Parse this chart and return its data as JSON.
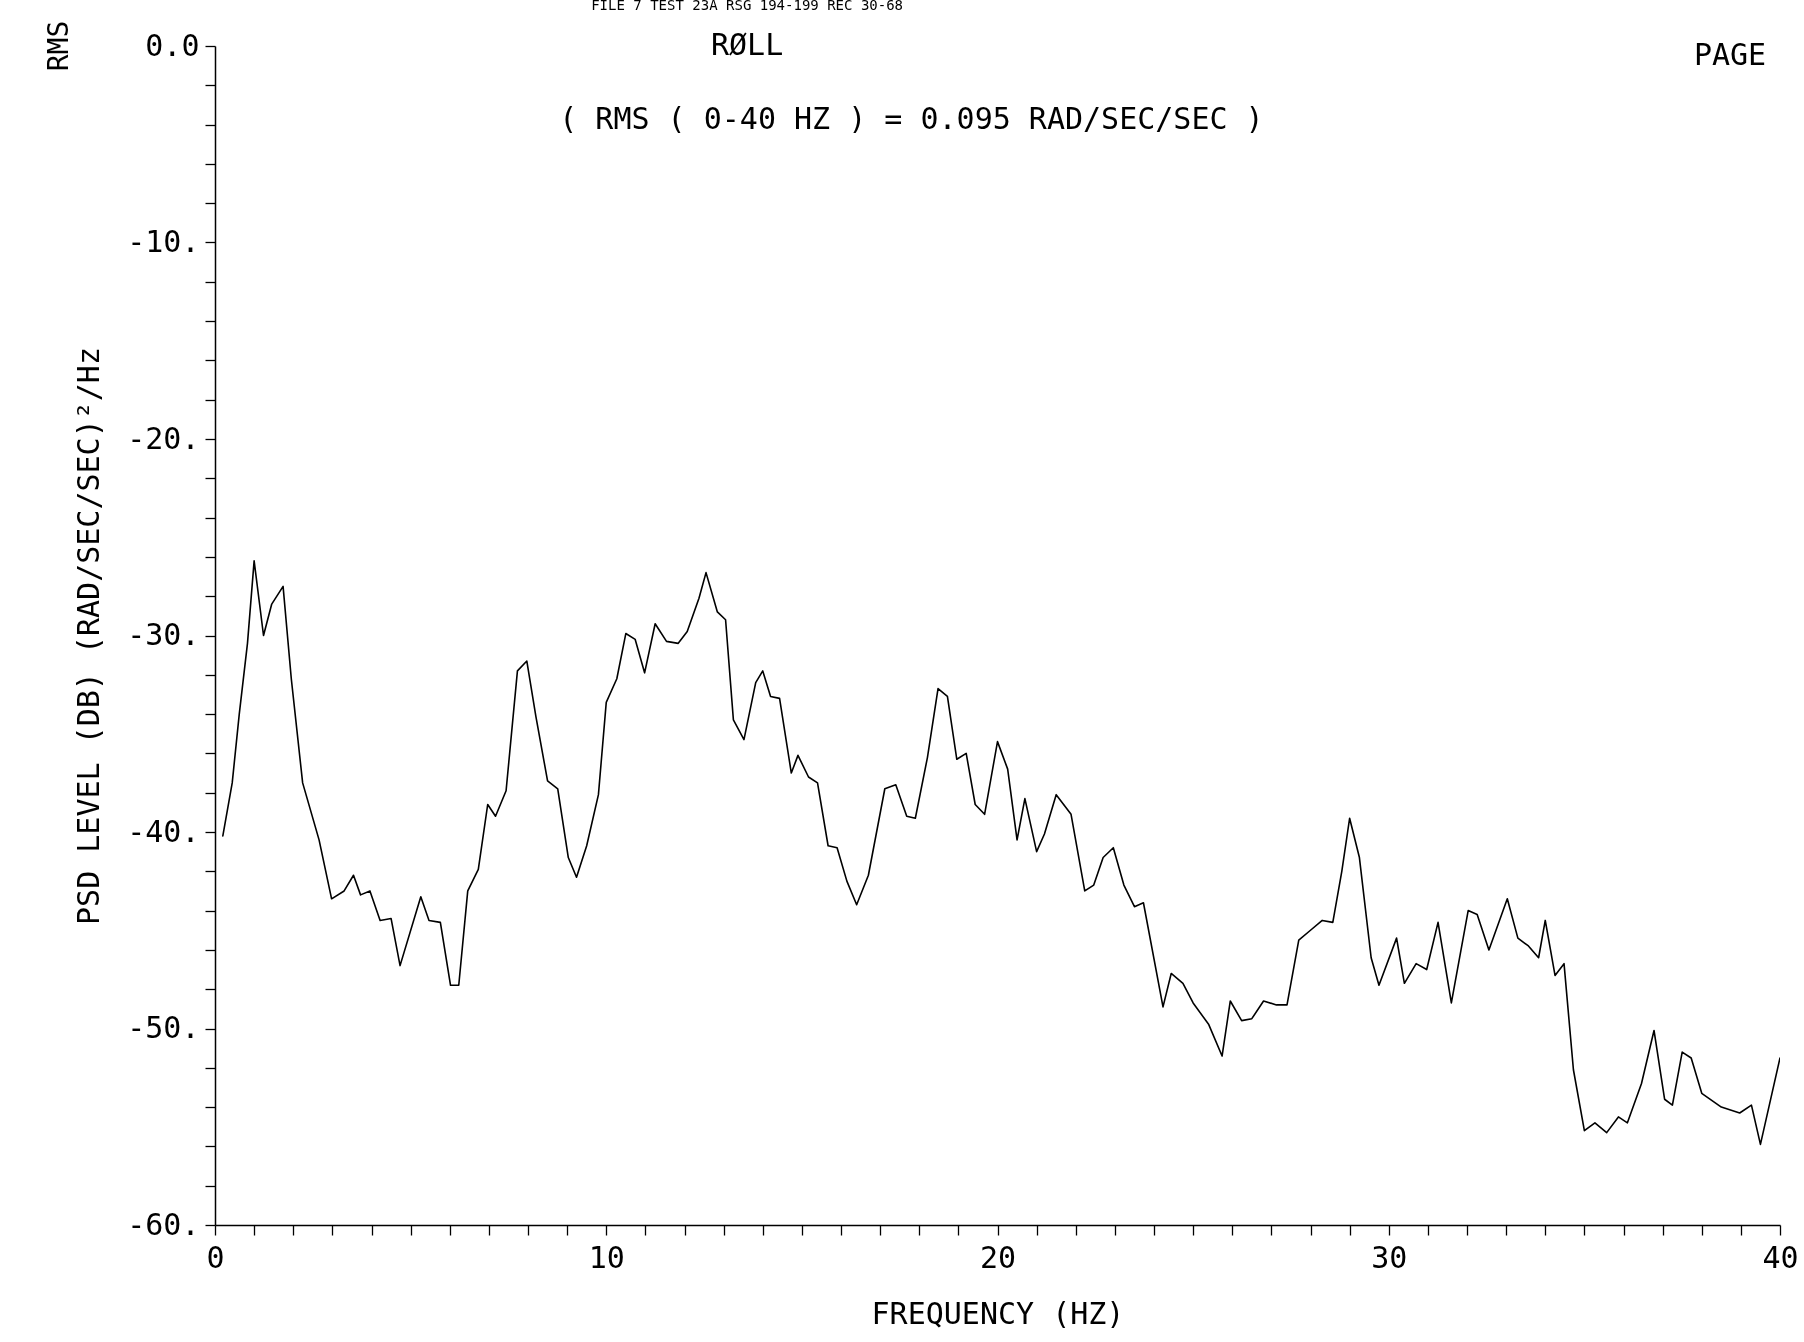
{
  "chart_data": {
    "type": "line",
    "title": "RØLL",
    "subtitle": "( RMS ( 0-40 HZ ) = 0.095 RAD/SEC/SEC )",
    "xlabel": "FREQUENCY (HZ)",
    "ylabel": "PSD LEVEL (DB)  (RAD/SEC/SEC)²/Hz",
    "annotations": [
      "RMS",
      "FILE 7 TEST 23A RSG 194-199 REC 30-68",
      "PAGE"
    ],
    "x": [
      0.2,
      0.44,
      0.62,
      0.83,
      1.0,
      1.24,
      1.45,
      1.74,
      1.95,
      2.24,
      2.66,
      2.98,
      3.3,
      3.54,
      3.72,
      3.96,
      4.22,
      4.5,
      4.73,
      5.26,
      5.47,
      5.76,
      6.02,
      6.23,
      6.46,
      6.73,
      6.97,
      7.17,
      7.44,
      7.73,
      7.97,
      8.2,
      8.5,
      8.76,
      9.03,
      9.24,
      9.5,
      9.8,
      10.0,
      10.27,
      10.5,
      10.74,
      10.98,
      11.25,
      11.54,
      11.84,
      12.07,
      12.37,
      12.55,
      12.84,
      13.05,
      13.25,
      13.52,
      13.82,
      14.0,
      14.2,
      14.43,
      14.73,
      14.9,
      15.17,
      15.4,
      15.67,
      15.9,
      16.15,
      16.4,
      16.7,
      17.12,
      17.4,
      17.68,
      17.9,
      18.21,
      18.48,
      18.72,
      18.96,
      19.2,
      19.43,
      19.67,
      20.0,
      20.26,
      20.5,
      20.7,
      21.0,
      21.2,
      21.5,
      21.88,
      22.23,
      22.46,
      22.7,
      22.96,
      23.23,
      23.5,
      23.73,
      24.23,
      24.44,
      24.74,
      25.0,
      25.4,
      25.74,
      25.95,
      26.24,
      26.5,
      26.8,
      27.13,
      27.4,
      27.7,
      28.0,
      28.3,
      28.57,
      28.8,
      29.0,
      29.25,
      29.55,
      29.75,
      30.2,
      30.4,
      30.7,
      30.97,
      31.26,
      31.6,
      32.03,
      32.26,
      32.56,
      33.03,
      33.3,
      33.57,
      33.83,
      34.0,
      34.25,
      34.48,
      34.72,
      35.0,
      35.27,
      35.57,
      35.87,
      36.1,
      36.46,
      36.78,
      37.05,
      37.25,
      37.5,
      37.73,
      38.0,
      38.5,
      38.97,
      39.27,
      39.5,
      40.0
    ],
    "series": [
      {
        "color": "#000000",
        "values": [
          -40.2,
          -37.5,
          -34.0,
          -30.4,
          -26.2,
          -30.0,
          -28.4,
          -27.5,
          -32.2,
          -37.5,
          -40.4,
          -43.4,
          -43.0,
          -42.2,
          -43.2,
          -43.0,
          -44.5,
          -44.4,
          -46.8,
          -43.3,
          -44.5,
          -44.6,
          -47.8,
          -47.8,
          -43.0,
          -41.9,
          -38.6,
          -39.2,
          -37.9,
          -31.8,
          -31.3,
          -34.1,
          -37.4,
          -37.8,
          -41.3,
          -42.3,
          -40.7,
          -38.1,
          -33.4,
          -32.2,
          -29.9,
          -30.2,
          -31.9,
          -29.4,
          -30.3,
          -30.4,
          -29.8,
          -28.1,
          -26.8,
          -28.8,
          -29.2,
          -34.3,
          -35.3,
          -32.4,
          -31.8,
          -33.1,
          -33.2,
          -37.0,
          -36.1,
          -37.2,
          -37.5,
          -40.7,
          -40.8,
          -42.5,
          -43.7,
          -42.2,
          -37.8,
          -37.6,
          -39.2,
          -39.3,
          -36.2,
          -32.7,
          -33.1,
          -36.3,
          -36.0,
          -38.6,
          -39.1,
          -35.4,
          -36.8,
          -40.4,
          -38.3,
          -41.0,
          -40.1,
          -38.1,
          -39.1,
          -43.0,
          -42.7,
          -41.3,
          -40.8,
          -42.7,
          -43.8,
          -43.6,
          -48.9,
          -47.2,
          -47.7,
          -48.7,
          -49.8,
          -51.4,
          -48.6,
          -49.6,
          -49.5,
          -48.6,
          -48.8,
          -48.8,
          -45.5,
          -45.0,
          -44.5,
          -44.6,
          -42.0,
          -39.3,
          -41.3,
          -46.4,
          -47.8,
          -45.4,
          -47.7,
          -46.7,
          -47.0,
          -44.6,
          -48.7,
          -44.0,
          -44.2,
          -46.0,
          -43.4,
          -45.4,
          -45.8,
          -46.4,
          -44.5,
          -47.3,
          -46.7,
          -52.1,
          -55.2,
          -54.8,
          -55.3,
          -54.5,
          -54.8,
          -52.8,
          -50.1,
          -53.6,
          -53.9,
          -51.2,
          -51.5,
          -53.3,
          -54.0,
          -54.3,
          -53.9,
          -55.9,
          -51.5
        ]
      }
    ],
    "xlim": [
      0,
      40
    ],
    "xticks": [
      0,
      {
        "value": 1,
        "label": null
      },
      {
        "value": 2,
        "label": null
      },
      {
        "value": 3,
        "label": null
      },
      {
        "value": 4,
        "label": null
      },
      {
        "value": 5,
        "label": null
      },
      {
        "value": 6,
        "label": null
      },
      {
        "value": 7,
        "label": null
      },
      {
        "value": 8,
        "label": null
      },
      {
        "value": 9,
        "label": null
      },
      10,
      {
        "value": 11,
        "label": null
      },
      {
        "value": 12,
        "label": null
      },
      {
        "value": 13,
        "label": null
      },
      {
        "value": 14,
        "label": null
      },
      {
        "value": 15,
        "label": null
      },
      {
        "value": 16,
        "label": null
      },
      {
        "value": 17,
        "label": null
      },
      {
        "value": 18,
        "label": null
      },
      {
        "value": 19,
        "label": null
      },
      20,
      {
        "value": 21,
        "label": null
      },
      {
        "value": 22,
        "label": null
      },
      {
        "value": 23,
        "label": null
      },
      {
        "value": 24,
        "label": null
      },
      {
        "value": 25,
        "label": null
      },
      {
        "value": 26,
        "label": null
      },
      {
        "value": 27,
        "label": null
      },
      {
        "value": 28,
        "label": null
      },
      {
        "value": 29,
        "label": null
      },
      30,
      {
        "value": 31,
        "label": null
      },
      {
        "value": 32,
        "label": null
      },
      {
        "value": 33,
        "label": null
      },
      {
        "value": 34,
        "label": null
      },
      {
        "value": 35,
        "label": null
      },
      {
        "value": 36,
        "label": null
      },
      {
        "value": 37,
        "label": null
      },
      {
        "value": 38,
        "label": null
      },
      {
        "value": 39,
        "label": null
      },
      40
    ],
    "ylim": [
      -60,
      0
    ],
    "yticks": [
      {
        "value": 0,
        "label": "0.0"
      },
      {
        "value": -2,
        "label": null
      },
      {
        "value": -4,
        "label": null
      },
      {
        "value": -6,
        "label": null
      },
      {
        "value": -8,
        "label": null
      },
      {
        "value": -10,
        "label": "-10."
      },
      {
        "value": -12,
        "label": null
      },
      {
        "value": -14,
        "label": null
      },
      {
        "value": -16,
        "label": null
      },
      {
        "value": -18,
        "label": null
      },
      {
        "value": -20,
        "label": "-20."
      },
      {
        "value": -22,
        "label": null
      },
      {
        "value": -24,
        "label": null
      },
      {
        "value": -26,
        "label": null
      },
      {
        "value": -28,
        "label": null
      },
      {
        "value": -30,
        "label": "-30."
      },
      {
        "value": -32,
        "label": null
      },
      {
        "value": -34,
        "label": null
      },
      {
        "value": -36,
        "label": null
      },
      {
        "value": -38,
        "label": null
      },
      {
        "value": -40,
        "label": "-40."
      },
      {
        "value": -42,
        "label": null
      },
      {
        "value": -44,
        "label": null
      },
      {
        "value": -46,
        "label": null
      },
      {
        "value": -48,
        "label": null
      },
      {
        "value": -50,
        "label": "-50."
      },
      {
        "value": -52,
        "label": null
      },
      {
        "value": -54,
        "label": null
      },
      {
        "value": -56,
        "label": null
      },
      {
        "value": -58,
        "label": null
      },
      {
        "value": -60,
        "label": "-60."
      }
    ],
    "line_style": "solid",
    "marker": "none"
  }
}
